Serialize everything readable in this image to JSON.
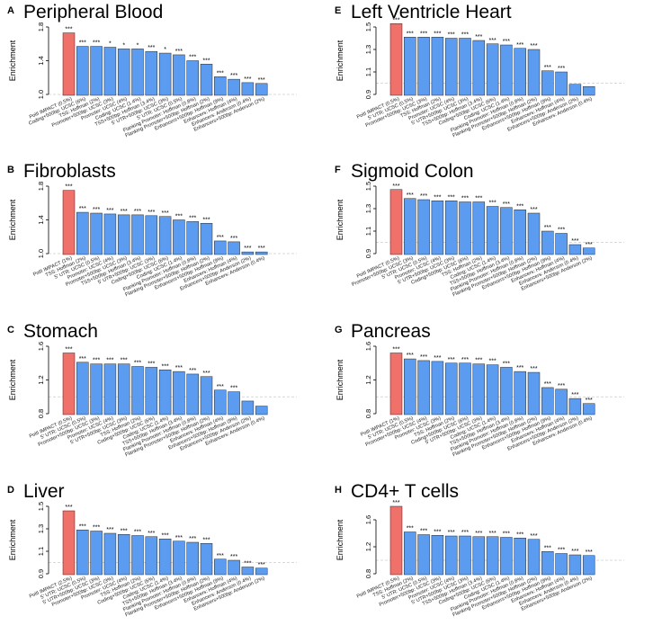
{
  "colors": {
    "highlight": "#F0706A",
    "bar": "#5B9BF0",
    "reference_line": "#cccccc"
  },
  "chart_data": [
    {
      "type": "bar",
      "letter": "A",
      "title": "Peripheral Blood",
      "ylabel": "Enrichment",
      "xlabel": "",
      "ylim": [
        1.0,
        1.8
      ],
      "yticks": [
        1.0,
        1.4,
        1.8
      ],
      "reference": 1.0,
      "categories": [
        "PolII IMPACT (0.5%)",
        "Coding+500bp: UCSC (6%)",
        "TSS: Hoffman (2%)",
        "Promoter+500bp: UCSC (3%)",
        "Promoter: UCSC (4%)",
        "Coding: UCSC (1.4%)",
        "TSS+500bp: Hoffman (3.4%)",
        "5' UTR+500bp: UCSC (3%)",
        "5' UTR: UCSC (0.5%)",
        "Flanking Promoter: Hoffman (0.8%)",
        "Flanking Promoter+500bp: Hoffman (2%)",
        "Enhancers+500bp: Hoffman (9%)",
        "Enhancers: Hoffman (4%)",
        "Enhancers: Anderson (0.4%)",
        "Enhancers+500bp: Anderson (2%)"
      ],
      "values": [
        1.73,
        1.57,
        1.57,
        1.56,
        1.54,
        1.54,
        1.51,
        1.49,
        1.47,
        1.4,
        1.36,
        1.21,
        1.18,
        1.14,
        1.13
      ],
      "labels": [
        "***",
        "***",
        "***",
        "*",
        "*",
        "*",
        "***",
        "*",
        "***",
        "***",
        "***",
        "***",
        "***",
        "***",
        "***"
      ]
    },
    {
      "type": "bar",
      "letter": "B",
      "title": "Fibroblasts",
      "ylabel": "Enrichment",
      "xlabel": "",
      "ylim": [
        1.0,
        1.8
      ],
      "yticks": [
        1.0,
        1.4,
        1.8
      ],
      "reference": 1.0,
      "categories": [
        "PolII IMPACT (1%)",
        "TSS: Hoffman (2%)",
        "5' UTR: UCSC (0.5%)",
        "Promoter: UCSC (4%)",
        "Promoter+500bp: UCSC (3%)",
        "TSS+500bp: Hoffman (3.4%)",
        "5' UTR+500bp: UCSC (3%)",
        "Coding+500bp: UCSC (6%)",
        "Coding: UCSC (1.4%)",
        "Flanking Promoter: Hoffman (0.8%)",
        "Flanking Promoter+500bp: Hoffman (2%)",
        "Enhancers+500bp: Hoffman (9%)",
        "Enhancers: Hoffman (4%)",
        "Enhancers+500bp: Anderson (2%)",
        "Enhancers: Anderson (0.4%)"
      ],
      "values": [
        1.75,
        1.49,
        1.48,
        1.47,
        1.46,
        1.46,
        1.45,
        1.44,
        1.4,
        1.38,
        1.36,
        1.15,
        1.14,
        1.02,
        1.02
      ],
      "labels": [
        "***",
        "***",
        "***",
        "***",
        "***",
        "***",
        "***",
        "***",
        "***",
        "***",
        "***",
        "***",
        "***",
        "***",
        "***"
      ]
    },
    {
      "type": "bar",
      "letter": "C",
      "title": "Stomach",
      "ylabel": "Enrichment",
      "xlabel": "",
      "ylim": [
        0.8,
        1.6
      ],
      "yticks": [
        0.8,
        1.2,
        1.6
      ],
      "reference": 1.0,
      "categories": [
        "PolII IMPACT (0.5%)",
        "5' UTR: UCSC (0.5%)",
        "Promoter+500bp: UCSC (3%)",
        "Promoter: UCSC (4%)",
        "5' UTR+500bp: UCSC (3%)",
        "TSS: Hoffman (2%)",
        "Coding+500bp: UCSC (6%)",
        "Coding: UCSC (1.4%)",
        "TSS+500bp: Hoffman (3.4%)",
        "Flanking Promoter: Hoffman (0.8%)",
        "Flanking Promoter+500bp: Hoffman (2%)",
        "Enhancers: Hoffman (4%)",
        "Enhancers+500bp: Hoffman (9%)",
        "Enhancers+500bp: Anderson (2%)",
        "Enhancers: Anderson (0.4%)"
      ],
      "values": [
        1.52,
        1.41,
        1.39,
        1.39,
        1.39,
        1.36,
        1.35,
        1.32,
        1.3,
        1.27,
        1.24,
        1.08,
        1.06,
        0.95,
        0.89
      ],
      "labels": [
        "***",
        "***",
        "***",
        "***",
        "***",
        "***",
        "***",
        "***",
        "***",
        "***",
        "***",
        "***",
        "***",
        "",
        ""
      ]
    },
    {
      "type": "bar",
      "letter": "D",
      "title": "Liver",
      "ylabel": "Enrichment",
      "xlabel": "",
      "ylim": [
        0.9,
        1.5
      ],
      "yticks": [
        0.9,
        1.1,
        1.3,
        1.5
      ],
      "reference": 1.0,
      "categories": [
        "PolII IMPACT (2.5%)",
        "5' UTR: UCSC (0.5%)",
        "5' UTR+500bp: UCSC (3%)",
        "Promoter+500bp: UCSC (3%)",
        "Promoter: UCSC (4%)",
        "TSS: Hoffman (2%)",
        "Coding+500bp: UCSC (6%)",
        "Coding: UCSC (1.4%)",
        "TSS+500bp: Hoffman (3.4%)",
        "Flanking Promoter: Hoffman (0.8%)",
        "Flanking Promoter+500bp: Hoffman (2%)",
        "Enhancers+500bp: Hoffman (9%)",
        "Enhancers: Hoffman (4%)",
        "Enhancers: Anderson (0.4%)",
        "Enhancers+500bp: Anderson (2%)"
      ],
      "values": [
        1.46,
        1.29,
        1.28,
        1.26,
        1.25,
        1.24,
        1.23,
        1.21,
        1.19,
        1.18,
        1.17,
        1.03,
        1.02,
        0.96,
        0.95
      ],
      "labels": [
        "***",
        "***",
        "***",
        "***",
        "***",
        "***",
        "***",
        "***",
        "***",
        "***",
        "***",
        "***",
        "***",
        "***",
        "***"
      ]
    },
    {
      "type": "bar",
      "letter": "E",
      "title": "Left Ventricle Heart",
      "ylabel": "Enrichment",
      "xlabel": "",
      "ylim": [
        0.9,
        1.5
      ],
      "yticks": [
        0.9,
        1.1,
        1.3,
        1.5
      ],
      "reference": 1.0,
      "categories": [
        "PolII IMPACT (0.5%)",
        "5' UTR: UCSC (0.5%)",
        "Promoter+500bp: UCSC (3%)",
        "TSS: Hoffman (2%)",
        "Promoter: UCSC (4%)",
        "5' UTR+500bp: UCSC (3%)",
        "TSS+500bp: Hoffman (3.4%)",
        "Coding+500bp: UCSC (6%)",
        "Coding: UCSC (1.4%)",
        "Flanking Promoter: Hoffman (0.8%)",
        "Flanking Promoter+500bp: Hoffman (2%)",
        "Enhancers+500bp: Hoffman (9%)",
        "Enhancers: Hoffman (4%)",
        "Enhancers+500bp: Anderson (2%)",
        "Enhancers: Anderson (0.4%)"
      ],
      "values": [
        1.53,
        1.41,
        1.41,
        1.41,
        1.4,
        1.4,
        1.38,
        1.35,
        1.34,
        1.31,
        1.3,
        1.11,
        1.1,
        0.99,
        0.97
      ],
      "labels": [
        "***",
        "***",
        "***",
        "***",
        "***",
        "***",
        "***",
        "***",
        "***",
        "***",
        "***",
        "***",
        "***",
        "",
        ""
      ]
    },
    {
      "type": "bar",
      "letter": "F",
      "title": "Sigmoid Colon",
      "ylabel": "Enrichment",
      "xlabel": "",
      "ylim": [
        0.9,
        1.5
      ],
      "yticks": [
        0.9,
        1.1,
        1.3,
        1.5
      ],
      "reference": 1.0,
      "categories": [
        "PolII IMPACT (0.5%)",
        "Promoter+500bp: UCSC (3%)",
        "5' UTR: UCSC (0.5%)",
        "Promoter: UCSC (4%)",
        "5' UTR+500bp: UCSC (3%)",
        "Coding+500bp: UCSC (6%)",
        "TSS: Hoffman (2%)",
        "Coding: UCSC (1.4%)",
        "TSS+500bp: Hoffman (3.4%)",
        "Flanking Promoter: Hoffman (0.8%)",
        "Flanking Promoter+500bp: Hoffman (2%)",
        "Enhancers+500bp: Hoffman (9%)",
        "Enhancers: Hoffman (4%)",
        "Enhancers: Anderson (0.4%)",
        "Enhancers+500bp: Anderson (2%)"
      ],
      "values": [
        1.47,
        1.39,
        1.38,
        1.37,
        1.37,
        1.36,
        1.36,
        1.32,
        1.31,
        1.29,
        1.26,
        1.1,
        1.08,
        0.98,
        0.95
      ],
      "labels": [
        "***",
        "***",
        "***",
        "***",
        "***",
        "***",
        "***",
        "***",
        "***",
        "***",
        "***",
        "***",
        "***",
        "***",
        "***"
      ]
    },
    {
      "type": "bar",
      "letter": "G",
      "title": "Pancreas",
      "ylabel": "Enrichment",
      "xlabel": "",
      "ylim": [
        0.8,
        1.6
      ],
      "yticks": [
        0.8,
        1.2,
        1.6
      ],
      "reference": 1.0,
      "categories": [
        "PolII IMPACT (1%)",
        "5' UTR: UCSC (0.5%)",
        "Promoter+500bp: UCSC (4%)",
        "Promoter: UCSC (3%)",
        "TSS: Hoffman (2%)",
        "Coding+500bp: UCSC (6%)",
        "5' UTR+500bp: UCSC (3%)",
        "Coding: UCSC (1.4%)",
        "TSS+500bp: Hoffman (3.4%)",
        "Flanking Promoter: Hoffman (0.8%)",
        "Flanking Promoter+500bp: Hoffman (2%)",
        "Enhancers+500bp: Hoffman (9%)",
        "Enhancers: Hoffman (4%)",
        "Enhancers+500bp: Anderson (2%)",
        "Enhancers: Anderson (0.4%)"
      ],
      "values": [
        1.52,
        1.45,
        1.43,
        1.42,
        1.4,
        1.4,
        1.39,
        1.38,
        1.35,
        1.3,
        1.29,
        1.11,
        1.09,
        0.98,
        0.92
      ],
      "labels": [
        "***",
        "***",
        "***",
        "***",
        "***",
        "***",
        "***",
        "***",
        "***",
        "***",
        "***",
        "***",
        "***",
        "***",
        "***"
      ]
    },
    {
      "type": "bar",
      "letter": "H",
      "title": "CD4+ T cells",
      "ylabel": "Enrichment",
      "xlabel": "",
      "ylim": [
        0.8,
        1.8
      ],
      "yticks": [
        0.8,
        1.2,
        1.6
      ],
      "reference": 1.0,
      "categories": [
        "PolII IMPACT (0.5%)",
        "TSS: Hoffman (2%)",
        "5' UTR: UCSC (0.5%)",
        "Promoter+500bp: UCSC (3%)",
        "Promoter: UCSC (4%)",
        "5' UTR+500bp: UCSC (3%)",
        "TSS+500bp: Hoffman (3.4%)",
        "Coding+500bp: UCSC (6%)",
        "Coding: UCSC (1.4%)",
        "Flanking Promoter: Hoffman (0.8%)",
        "Flanking Promoter+500bp: Hoffman (2%)",
        "Enhancers+500bp: Hoffman (9%)",
        "Enhancers: Hoffman (4%)",
        "Enhancers: Anderson (0.4%)",
        "Enhancers+500bp: Anderson (2%)"
      ],
      "values": [
        1.8,
        1.42,
        1.38,
        1.37,
        1.36,
        1.36,
        1.35,
        1.35,
        1.34,
        1.33,
        1.31,
        1.13,
        1.1,
        1.08,
        1.07
      ],
      "labels": [
        "***",
        "***",
        "***",
        "***",
        "***",
        "***",
        "***",
        "***",
        "***",
        "***",
        "***",
        "***",
        "***",
        "***",
        "***"
      ]
    }
  ]
}
